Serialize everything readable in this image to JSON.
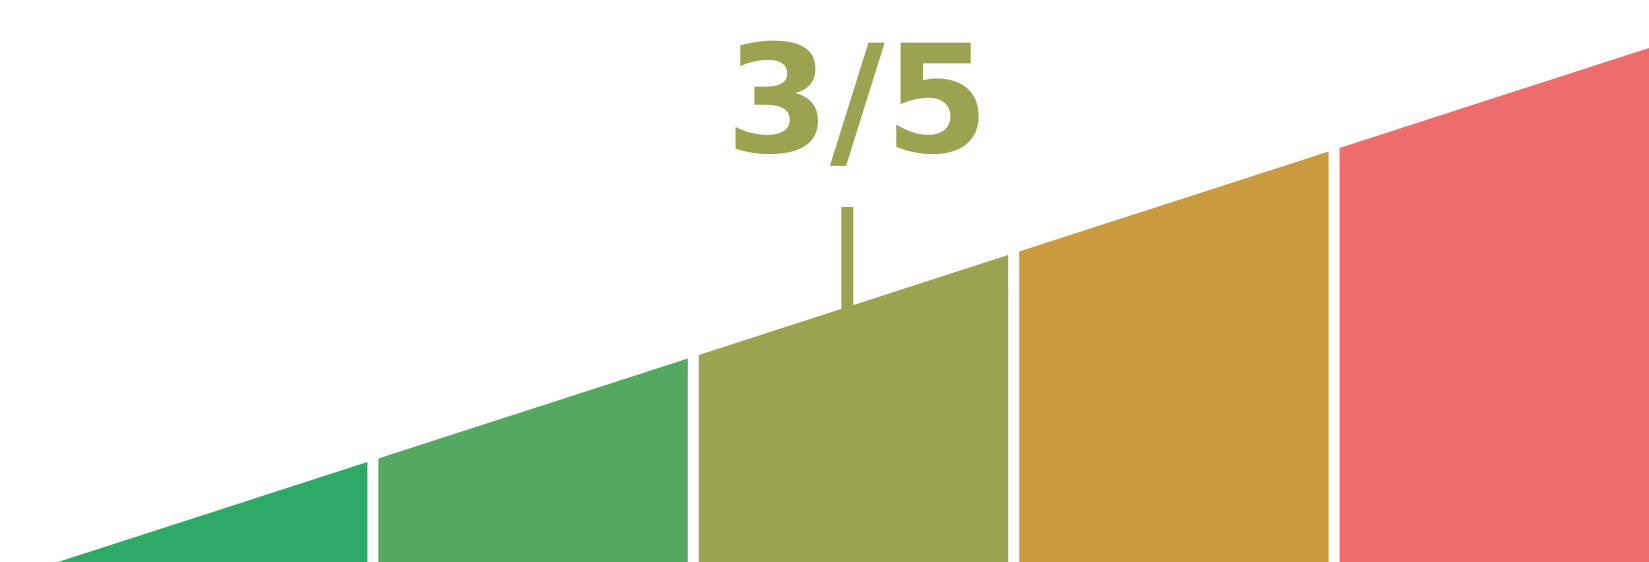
{
  "rating": {
    "score_label": "3/5",
    "value": 3,
    "max": 5,
    "fraction": 0.6,
    "segments": [
      {
        "level": 1,
        "color": "#2EAA67"
      },
      {
        "level": 2,
        "color": "#55A85F"
      },
      {
        "level": 3,
        "color": "#9BA350"
      },
      {
        "level": 4,
        "color": "#CA9A3F"
      },
      {
        "level": 5,
        "color": "#EC6D6B"
      }
    ]
  }
}
